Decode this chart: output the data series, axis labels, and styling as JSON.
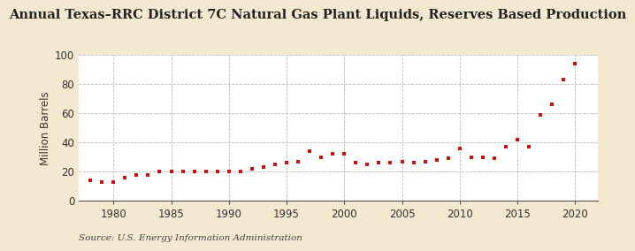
{
  "title": "Annual Texas–RRC District 7C Natural Gas Plant Liquids, Reserves Based Production",
  "ylabel": "Million Barrels",
  "source": "Source: U.S. Energy Information Administration",
  "background_color": "#f5e8d0",
  "plot_background_color": "#ffffff",
  "marker_color": "#cc1111",
  "years": [
    1978,
    1979,
    1980,
    1981,
    1982,
    1983,
    1984,
    1985,
    1986,
    1987,
    1988,
    1989,
    1990,
    1991,
    1992,
    1993,
    1994,
    1995,
    1996,
    1997,
    1998,
    1999,
    2000,
    2001,
    2002,
    2003,
    2004,
    2005,
    2006,
    2007,
    2008,
    2009,
    2010,
    2011,
    2012,
    2013,
    2014,
    2015,
    2016,
    2017,
    2018,
    2019,
    2020
  ],
  "values": [
    14,
    13,
    13,
    16,
    18,
    18,
    20,
    20,
    20,
    20,
    20,
    20,
    20,
    20,
    22,
    23,
    25,
    26,
    27,
    34,
    30,
    32,
    32,
    26,
    25,
    26,
    26,
    27,
    26,
    27,
    28,
    29,
    36,
    30,
    30,
    29,
    37,
    42,
    37,
    59,
    66,
    83,
    94
  ],
  "xlim": [
    1977,
    2022
  ],
  "ylim": [
    0,
    100
  ],
  "xticks": [
    1980,
    1985,
    1990,
    1995,
    2000,
    2005,
    2010,
    2015,
    2020
  ],
  "yticks": [
    0,
    20,
    40,
    60,
    80,
    100
  ],
  "grid_color": "#bbbbbb",
  "title_fontsize": 10.5,
  "label_fontsize": 8.5,
  "source_fontsize": 7.5
}
